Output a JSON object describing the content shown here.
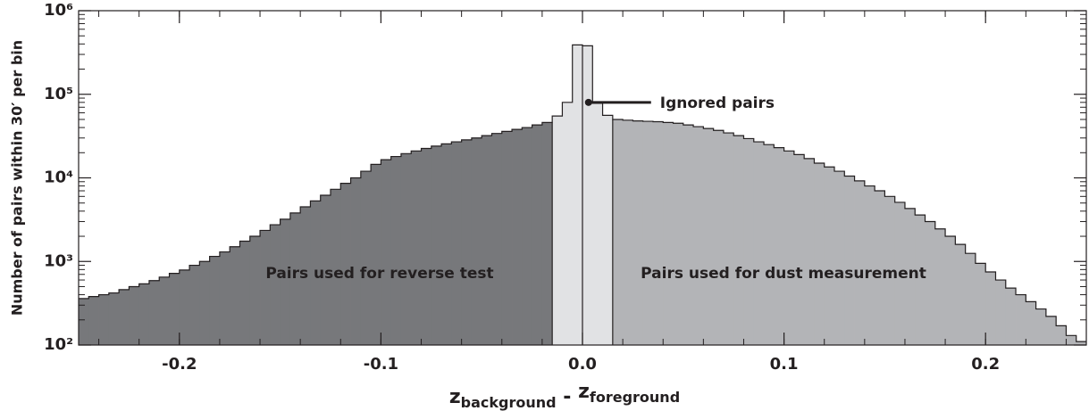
{
  "chart_data": {
    "type": "histogram",
    "ylabel": "Number of pairs within 30′ per bin",
    "xlabel_parts": [
      "z",
      "background",
      " - ",
      "z",
      "foreground"
    ],
    "bins": [
      -0.25,
      -0.245,
      -0.24,
      -0.235,
      -0.23,
      -0.225,
      -0.22,
      -0.215,
      -0.21,
      -0.205,
      -0.2,
      -0.195,
      -0.19,
      -0.185,
      -0.18,
      -0.175,
      -0.17,
      -0.165,
      -0.16,
      -0.155,
      -0.15,
      -0.145,
      -0.14,
      -0.135,
      -0.13,
      -0.125,
      -0.12,
      -0.115,
      -0.11,
      -0.105,
      -0.1,
      -0.095,
      -0.09,
      -0.085,
      -0.08,
      -0.075,
      -0.07,
      -0.065,
      -0.06,
      -0.055,
      -0.05,
      -0.045,
      -0.04,
      -0.035,
      -0.03,
      -0.025,
      -0.02,
      -0.015,
      -0.01,
      -0.005,
      0,
      0.005,
      0.01,
      0.015,
      0.02,
      0.025,
      0.03,
      0.035,
      0.04,
      0.045,
      0.05,
      0.055,
      0.06,
      0.065,
      0.07,
      0.075,
      0.08,
      0.085,
      0.09,
      0.095,
      0.1,
      0.105,
      0.11,
      0.115,
      0.12,
      0.125,
      0.13,
      0.135,
      0.14,
      0.145,
      0.15,
      0.155,
      0.16,
      0.165,
      0.17,
      0.175,
      0.18,
      0.185,
      0.19,
      0.195,
      0.2,
      0.205,
      0.21,
      0.215,
      0.22,
      0.225,
      0.23,
      0.235,
      0.24,
      0.245,
      0.25
    ],
    "values": [
      360,
      380,
      400,
      420,
      460,
      500,
      540,
      590,
      650,
      720,
      790,
      900,
      1000,
      1150,
      1300,
      1500,
      1750,
      2000,
      2350,
      2750,
      3200,
      3800,
      4500,
      5300,
      6200,
      7300,
      8600,
      10000,
      12000,
      14500,
      16500,
      18000,
      19500,
      21000,
      22500,
      24000,
      25500,
      27000,
      28500,
      30000,
      32000,
      34000,
      36000,
      38000,
      40000,
      43000,
      46000,
      55000,
      80000,
      390000,
      380000,
      78000,
      56000,
      50000,
      49000,
      48000,
      47500,
      47000,
      46000,
      45000,
      43000,
      41000,
      39000,
      37000,
      34500,
      32000,
      29500,
      27000,
      25000,
      23000,
      21000,
      19000,
      17000,
      15000,
      13500,
      12000,
      10500,
      9200,
      8000,
      7000,
      6000,
      5100,
      4300,
      3600,
      3000,
      2450,
      2000,
      1600,
      1250,
      950,
      750,
      600,
      480,
      400,
      330,
      270,
      220,
      170,
      130,
      110
    ],
    "regions": [
      {
        "label": "Pairs used for reverse test",
        "xlim": [
          -0.25,
          -0.015
        ],
        "color": "#77787b"
      },
      {
        "xlim": [
          -0.015,
          0.015
        ],
        "color": "#e1e2e4"
      },
      {
        "label": "Pairs used for dust measurement",
        "xlim": [
          0.015,
          0.25
        ],
        "color": "#b3b4b7"
      }
    ],
    "vlines": [
      -0.015,
      0,
      0.015
    ],
    "annotation": {
      "text": "Ignored pairs",
      "x": 0.003,
      "y": 80000
    },
    "xlim": [
      -0.25,
      0.25
    ],
    "xticks": [
      -0.2,
      -0.1,
      {
        "value": 0,
        "label": "0.0"
      },
      0.1,
      0.2
    ],
    "ylim": [
      100,
      1000000
    ],
    "log_y": true,
    "yticks": [
      {
        "value": 100,
        "label": "10²"
      },
      {
        "value": 1000,
        "label": "10³"
      },
      {
        "value": 10000,
        "label": "10⁴"
      },
      {
        "value": 100000,
        "label": "10⁵"
      },
      {
        "value": 1000000,
        "label": "10⁶"
      }
    ]
  }
}
